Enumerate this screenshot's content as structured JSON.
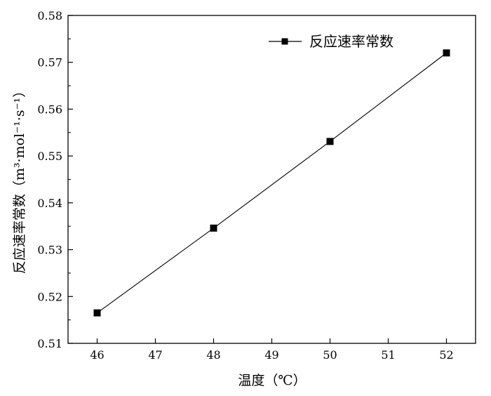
{
  "chart_data": {
    "type": "line",
    "x": [
      46,
      48,
      50,
      52
    ],
    "series": [
      {
        "name": "反应速率常数",
        "values": [
          0.5165,
          0.5346,
          0.5531,
          0.572
        ],
        "marker": "square",
        "color": "#000000"
      }
    ],
    "xlabel": "温度（℃）",
    "ylabel": "反应速率常数（m³·mol⁻¹·s⁻¹）",
    "xlim": [
      45.5,
      52.5
    ],
    "ylim": [
      0.51,
      0.58
    ],
    "xticks": [
      46,
      47,
      48,
      49,
      50,
      51,
      52
    ],
    "yticks": [
      0.51,
      0.52,
      0.53,
      0.54,
      0.55,
      0.56,
      0.57,
      0.58
    ],
    "ytick_labels": [
      "0.51",
      "0.52",
      "0.53",
      "0.54",
      "0.55",
      "0.56",
      "0.57",
      "0.58"
    ],
    "grid": false,
    "legend_position": "top-right"
  }
}
